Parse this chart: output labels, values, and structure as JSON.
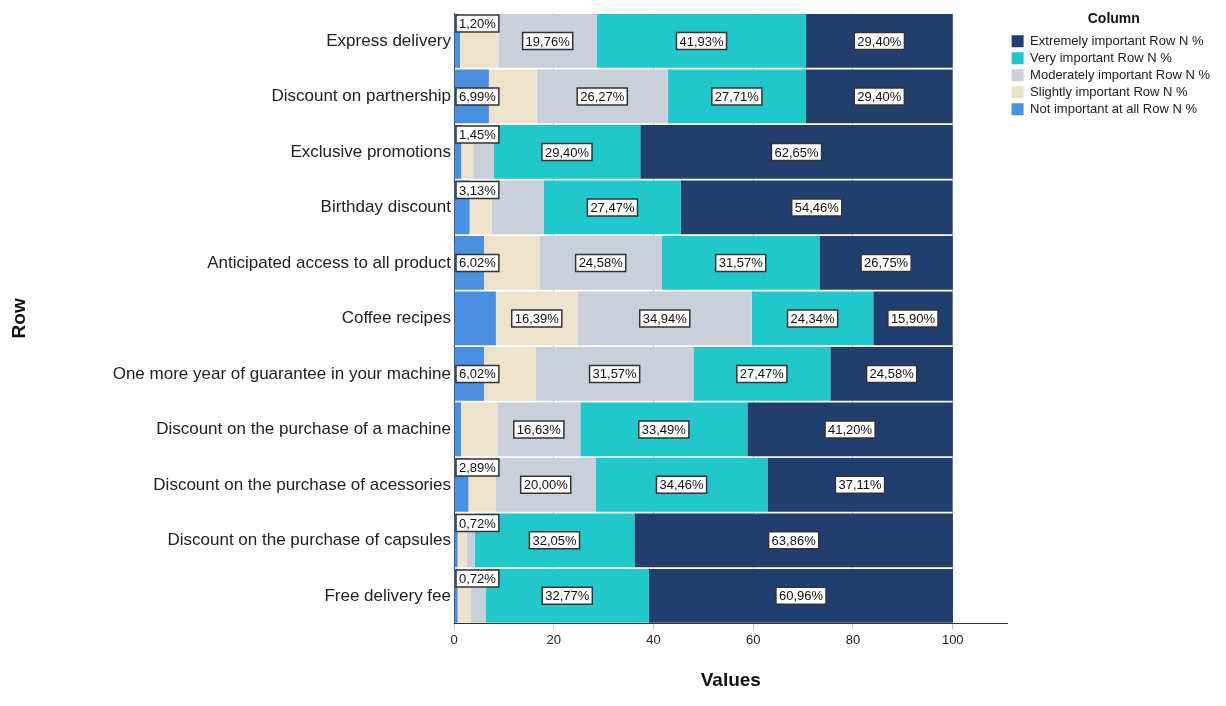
{
  "chart_data": {
    "type": "bar",
    "orientation": "horizontal",
    "stacked": true,
    "xlabel": "Values",
    "ylabel": "Row",
    "legend_title": "Column",
    "legend": "top right",
    "grid": "x",
    "categories": [
      "Express delivery",
      "Discount on partnership",
      "Exclusive promotions",
      "Birthday discount",
      "Anticipated access to all product",
      "Coffee recipes",
      "One more year of guarantee in your machine",
      "Discount on the purchase of a machine",
      "Discount on the purchase of acessories",
      "Discount on the purchase of capsules",
      "Free delivery fee"
    ],
    "xlim": [
      0,
      111
    ],
    "xticks": [
      0,
      20,
      40,
      60,
      80,
      100
    ],
    "series": [
      {
        "name": "Not important at all Row N %",
        "color": "#4a8fe0",
        "values": [
          1.2,
          6.99,
          1.45,
          3.13,
          6.02,
          8.4,
          6.02,
          1.4,
          2.89,
          0.72,
          0.72
        ],
        "value_labels": [
          "1,20%",
          "6,99%",
          "1,45%",
          "3,13%",
          "6,02%",
          null,
          "6,02%",
          null,
          "2,89%",
          "0,72%",
          "0,72%"
        ]
      },
      {
        "name": "Slightly important Row N %",
        "color": "#ede3cc",
        "values": [
          7.7,
          9.6,
          2.4,
          4.4,
          11.1,
          16.39,
          10.4,
          7.3,
          5.5,
          1.8,
          2.7
        ],
        "value_labels": [
          null,
          null,
          null,
          null,
          null,
          "16,39%",
          null,
          null,
          null,
          null,
          null
        ]
      },
      {
        "name": "Moderately important Row N %",
        "color": "#c9d0da",
        "values": [
          19.76,
          26.27,
          4.1,
          10.5,
          24.58,
          34.94,
          31.57,
          16.63,
          20.0,
          1.6,
          2.9
        ],
        "value_labels": [
          "19,76%",
          "26,27%",
          null,
          null,
          "24,58%",
          "34,94%",
          "31,57%",
          "16,63%",
          "20,00%",
          null,
          null
        ]
      },
      {
        "name": "Very important Row N %",
        "color": "#21c8cb",
        "values": [
          41.93,
          27.71,
          29.4,
          27.47,
          31.57,
          24.34,
          27.47,
          33.49,
          34.46,
          32.05,
          32.77
        ],
        "value_labels": [
          "41,93%",
          "27,71%",
          "29,40%",
          "27,47%",
          "31,57%",
          "24,34%",
          "27,47%",
          "33,49%",
          "34,46%",
          "32,05%",
          "32,77%"
        ]
      },
      {
        "name": "Extremely important Row N %",
        "color": "#213f6e",
        "values": [
          29.4,
          29.4,
          62.65,
          54.46,
          26.75,
          15.9,
          24.58,
          41.2,
          37.11,
          63.86,
          60.96
        ],
        "value_labels": [
          "29,40%",
          "29,40%",
          "62,65%",
          "54,46%",
          "26,75%",
          "15,90%",
          "24,58%",
          "41,20%",
          "37,11%",
          "63,86%",
          "60,96%"
        ]
      }
    ]
  }
}
